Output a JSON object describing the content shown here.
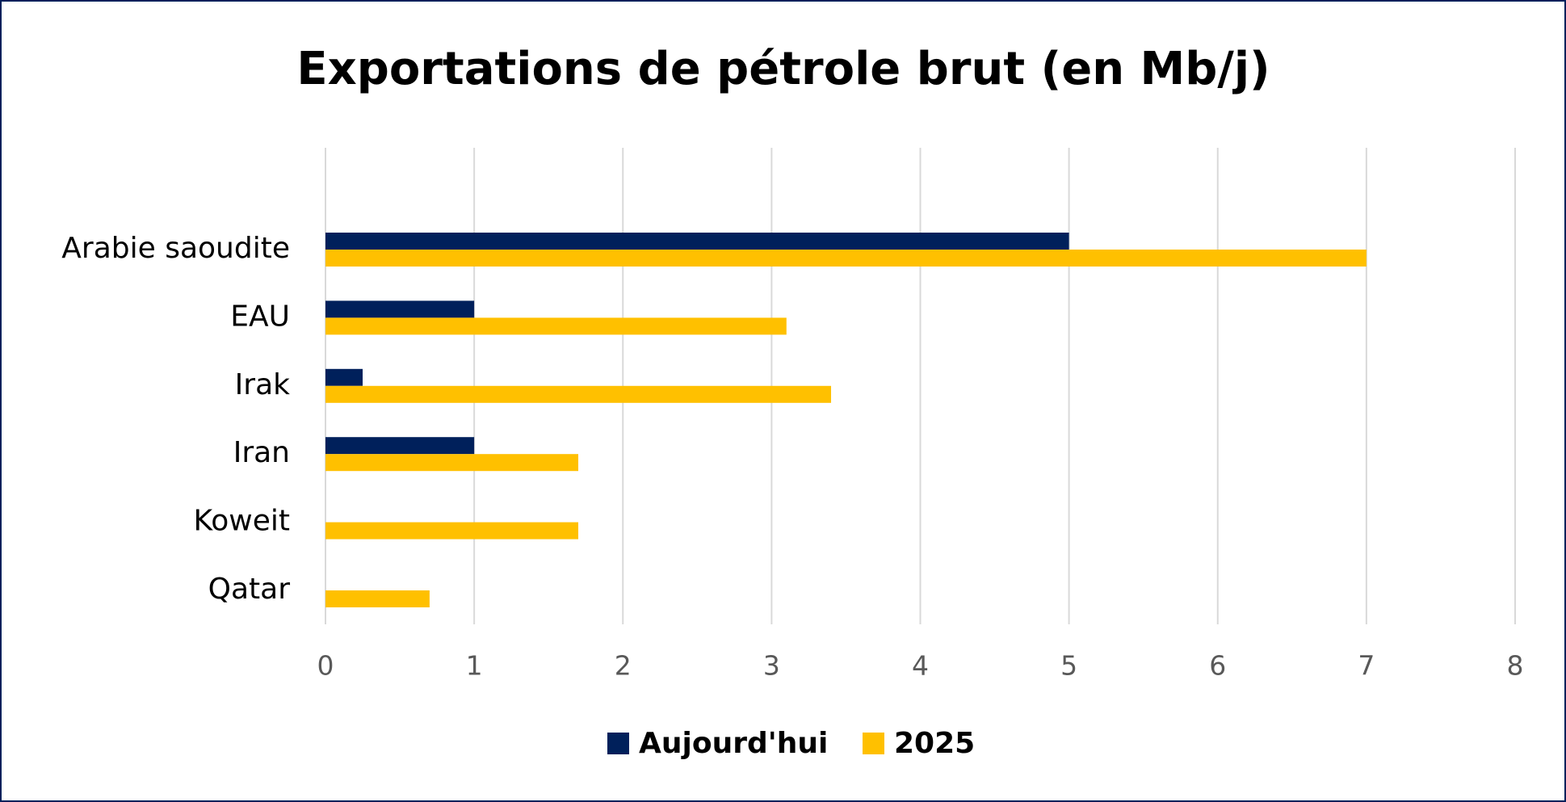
{
  "chart_data": {
    "type": "bar",
    "orientation": "horizontal",
    "title": "Exportations de pétrole brut (en Mb/j)",
    "categories": [
      "Arabie saoudite",
      "EAU",
      "Irak",
      "Iran",
      "Koweit",
      "Qatar"
    ],
    "series": [
      {
        "name": "Aujourd'hui",
        "color": "#00205b",
        "values": [
          5,
          1,
          0.25,
          1,
          0,
          0
        ]
      },
      {
        "name": "2025",
        "color": "#ffc000",
        "values": [
          7,
          3.1,
          3.4,
          1.7,
          1.7,
          0.7
        ]
      }
    ],
    "xlim": [
      0,
      8
    ],
    "xticks": [
      0,
      1,
      2,
      3,
      4,
      5,
      6,
      7,
      8
    ],
    "grid": true,
    "legend": "bottom"
  }
}
